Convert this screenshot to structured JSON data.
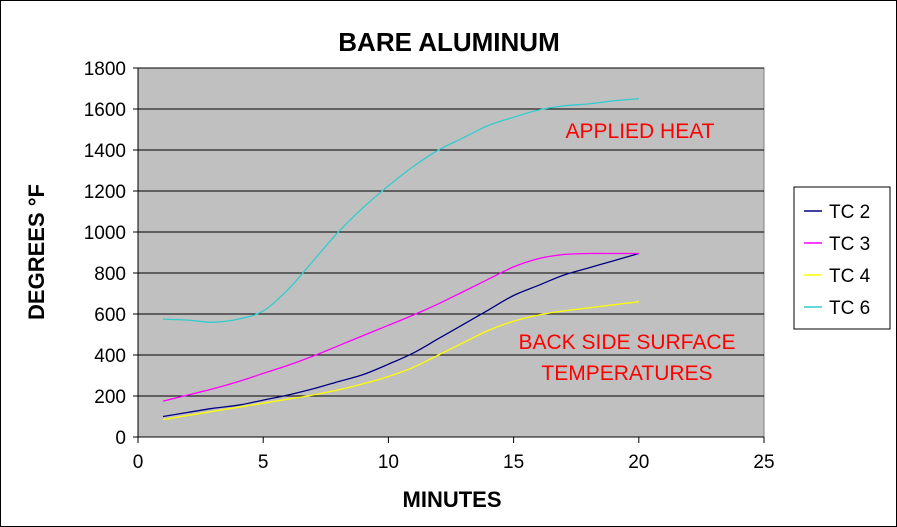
{
  "chart_data": {
    "type": "line",
    "title": "BARE  ALUMINUM",
    "xlabel": "MINUTES",
    "ylabel": "DEGREES °F",
    "xlim": [
      0,
      25
    ],
    "ylim": [
      0,
      1800
    ],
    "xticks": [
      0,
      5,
      10,
      15,
      20,
      25
    ],
    "yticks": [
      0,
      200,
      400,
      600,
      800,
      1000,
      1200,
      1400,
      1600,
      1800
    ],
    "grid": "horizontal",
    "legend_position": "right",
    "plot_background": "#c0c0c0",
    "series": [
      {
        "name": "TC 2",
        "color": "#000080",
        "x": [
          1,
          2,
          3,
          4,
          5,
          6,
          7,
          8,
          9,
          10,
          11,
          12,
          13,
          14,
          15,
          16,
          17,
          18,
          19,
          20
        ],
        "y": [
          100,
          120,
          140,
          155,
          180,
          205,
          235,
          270,
          305,
          355,
          410,
          480,
          550,
          620,
          690,
          740,
          790,
          825,
          860,
          895
        ]
      },
      {
        "name": "TC 3",
        "color": "#ff00ff",
        "x": [
          1,
          2,
          3,
          4,
          5,
          6,
          7,
          8,
          9,
          10,
          11,
          12,
          13,
          14,
          15,
          16,
          17,
          18,
          19,
          20
        ],
        "y": [
          175,
          205,
          235,
          270,
          310,
          350,
          395,
          445,
          495,
          545,
          595,
          650,
          710,
          770,
          830,
          870,
          890,
          895,
          895,
          895
        ]
      },
      {
        "name": "TC 4",
        "color": "#ffff00",
        "x": [
          1,
          2,
          3,
          4,
          5,
          6,
          7,
          8,
          9,
          10,
          11,
          12,
          13,
          14,
          15,
          16,
          17,
          18,
          19,
          20
        ],
        "y": [
          85,
          105,
          125,
          145,
          165,
          185,
          205,
          230,
          260,
          295,
          340,
          400,
          460,
          520,
          565,
          595,
          615,
          630,
          645,
          660
        ]
      },
      {
        "name": "TC 6",
        "color": "#33cccc",
        "x": [
          1,
          2,
          3,
          4,
          5,
          6,
          7,
          8,
          9,
          10,
          11,
          12,
          13,
          14,
          15,
          16,
          17,
          18,
          19,
          20
        ],
        "y": [
          575,
          570,
          560,
          575,
          615,
          720,
          860,
          1000,
          1120,
          1225,
          1320,
          1400,
          1460,
          1520,
          1560,
          1595,
          1615,
          1625,
          1640,
          1650
        ]
      }
    ],
    "annotations": [
      {
        "text": "APPLIED  HEAT",
        "color": "#ff0000"
      },
      {
        "text": "BACK SIDE SURFACE",
        "color": "#ff0000"
      },
      {
        "text": "TEMPERATURES",
        "color": "#ff0000"
      }
    ]
  }
}
